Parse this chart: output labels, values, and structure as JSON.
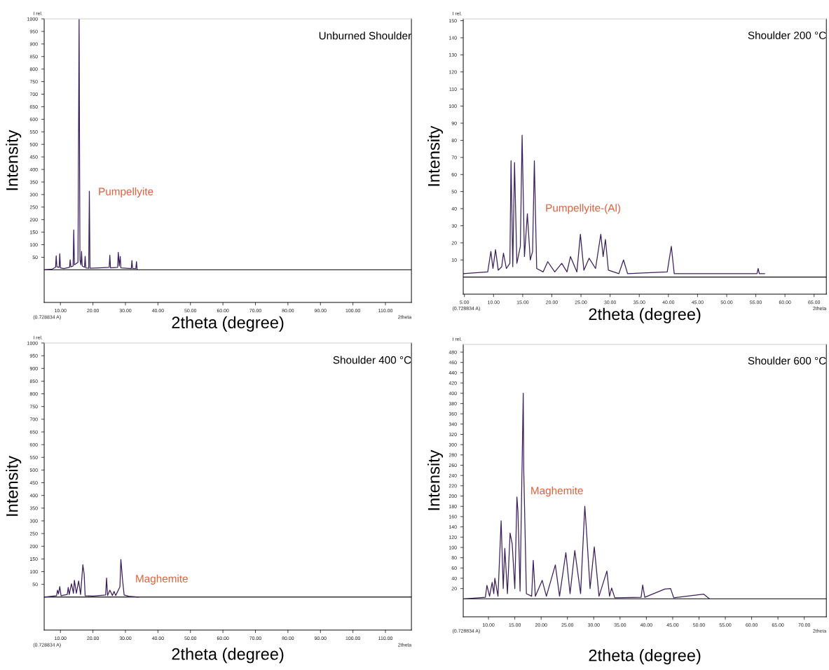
{
  "chart_data": [
    {
      "type": "line",
      "title": "Unburned Shoulder",
      "xlabel": "2theta (degree)",
      "ylabel": "Intensity",
      "xlim": [
        5,
        118
      ],
      "ylim": [
        -130,
        1000
      ],
      "xticks": [
        {
          "value": 10,
          "label": "10.00"
        },
        {
          "value": 20,
          "label": "20.00"
        },
        {
          "value": 30,
          "label": "30.00"
        },
        {
          "value": 40,
          "label": "40.00"
        },
        {
          "value": 50,
          "label": "50.00"
        },
        {
          "value": 60,
          "label": "60.00"
        },
        {
          "value": 70,
          "label": "70.00"
        },
        {
          "value": 80,
          "label": "80.00"
        },
        {
          "value": 90,
          "label": "90.00"
        },
        {
          "value": 100,
          "label": "100.00"
        },
        {
          "value": 110,
          "label": "110.00"
        }
      ],
      "yticks": [
        50,
        100,
        150,
        200,
        250,
        300,
        350,
        400,
        450,
        500,
        550,
        600,
        650,
        700,
        750,
        800,
        850,
        900,
        950,
        1000
      ],
      "series": [
        {
          "color": "#3b1f5c",
          "x": [
            5,
            7.5,
            8.5,
            8.7,
            8.9,
            9.6,
            9.8,
            10.0,
            11.0,
            12.8,
            13.0,
            13.2,
            13.9,
            14.1,
            14.3,
            15.4,
            15.74,
            16.0,
            16.3,
            16.5,
            16.7,
            17.4,
            17.6,
            17.8,
            18.7,
            18.9,
            19.1,
            22,
            25.0,
            25.2,
            25.4,
            27.6,
            27.8,
            28.1,
            28.4,
            28.6,
            31.8,
            32.0,
            32.2,
            33.2,
            33.4,
            33.6
          ],
          "values": [
            0,
            3,
            10,
            56,
            12,
            10,
            64,
            8,
            5,
            10,
            40,
            12,
            15,
            159,
            20,
            30,
            1000,
            40,
            20,
            73,
            15,
            10,
            54,
            8,
            6,
            313,
            6,
            8,
            10,
            58,
            8,
            10,
            70,
            15,
            53,
            8,
            5,
            37,
            5,
            5,
            33,
            0
          ]
        }
      ],
      "ref_lines": [
        {
          "axis": "y",
          "value": 0,
          "color": "#333333"
        }
      ],
      "annotations": [
        "Pumpellyite",
        "I rel.",
        "(0.728834 A)",
        "2theta"
      ]
    },
    {
      "type": "line",
      "title": "Shoulder 200 °C",
      "xlabel": "2theta (degree)",
      "ylabel": "Intensity",
      "xlim": [
        4.8,
        67.1
      ],
      "ylim": [
        -10,
        151
      ],
      "xticks": [
        {
          "value": 5,
          "label": "5.00"
        },
        {
          "value": 10,
          "label": "10.00"
        },
        {
          "value": 15,
          "label": "15.00"
        },
        {
          "value": 20,
          "label": "20.00"
        },
        {
          "value": 25,
          "label": "25.00"
        },
        {
          "value": 30,
          "label": "30.00"
        },
        {
          "value": 35,
          "label": "35.00"
        },
        {
          "value": 40,
          "label": "40.00"
        },
        {
          "value": 45,
          "label": "45.00"
        },
        {
          "value": 50,
          "label": "50.00"
        },
        {
          "value": 55,
          "label": "55.00"
        },
        {
          "value": 60,
          "label": "60.00"
        },
        {
          "value": 65,
          "label": "65.00"
        }
      ],
      "yticks": [
        10,
        20,
        30,
        40,
        50,
        60,
        70,
        80,
        90,
        100,
        110,
        120,
        130,
        140,
        150
      ],
      "series": [
        {
          "color": "#3b1f5c",
          "x": [
            4.8,
            9.0,
            9.54,
            9.9,
            10.34,
            10.8,
            11.4,
            11.7,
            12.2,
            12.8,
            13.0,
            13.3,
            13.6,
            14.0,
            14.6,
            14.9,
            15.3,
            15.8,
            16.3,
            16.7,
            17.0,
            17.4,
            18.5,
            19.3,
            20.5,
            21.7,
            22.6,
            23.2,
            24.3,
            24.9,
            25.5,
            26.4,
            27.5,
            28.4,
            28.8,
            29.2,
            29.7,
            31.5,
            32.3,
            33,
            39.8,
            40.5,
            41,
            55.2,
            55.4,
            55.6,
            56.5
          ],
          "values": [
            2,
            3,
            15,
            5,
            16,
            4,
            6,
            14,
            5,
            8,
            68,
            6,
            67,
            8,
            18,
            83,
            12,
            37,
            10,
            15,
            68,
            5,
            3,
            9,
            3,
            8,
            3,
            12,
            3,
            25,
            4,
            11,
            5,
            25,
            12,
            22,
            4,
            2,
            10,
            2,
            3,
            18,
            2,
            2,
            5,
            2,
            2
          ]
        }
      ],
      "ref_lines": [
        {
          "axis": "y",
          "value": 0,
          "color": "#333333"
        }
      ],
      "annotations": [
        "Pumpellyite-(Al)",
        "I rel.",
        "(0.728834 A)",
        "2theta"
      ]
    },
    {
      "type": "line",
      "title": "Shoulder 400 °C",
      "xlabel": "2theta (degree)",
      "ylabel": "Intensity",
      "xlim": [
        5,
        118
      ],
      "ylim": [
        -130,
        1000
      ],
      "xticks": [
        {
          "value": 10,
          "label": "10.00"
        },
        {
          "value": 20,
          "label": "20.00"
        },
        {
          "value": 30,
          "label": "30.00"
        },
        {
          "value": 40,
          "label": "40.00"
        },
        {
          "value": 50,
          "label": "50.00"
        },
        {
          "value": 60,
          "label": "60.00"
        },
        {
          "value": 70,
          "label": "70.00"
        },
        {
          "value": 80,
          "label": "80.00"
        },
        {
          "value": 90,
          "label": "90.00"
        },
        {
          "value": 100,
          "label": "100.00"
        },
        {
          "value": 110,
          "label": "110.00"
        }
      ],
      "yticks": [
        50,
        100,
        150,
        200,
        250,
        300,
        350,
        400,
        450,
        500,
        550,
        600,
        650,
        700,
        750,
        800,
        850,
        900,
        950,
        1000
      ],
      "series": [
        {
          "color": "#3b1f5c",
          "x": [
            5,
            8.8,
            9.1,
            9.4,
            9.8,
            10.2,
            12.1,
            12.4,
            12.7,
            13.4,
            14.0,
            14.3,
            14.9,
            15.6,
            16.2,
            16.9,
            17.3,
            17.6,
            20,
            23.9,
            24.2,
            24.5,
            25.2,
            26.0,
            26.5,
            27,
            28.3,
            28.6,
            29.1,
            29.6,
            31,
            34
          ],
          "values": [
            0,
            5,
            27,
            12,
            41,
            5,
            10,
            38,
            10,
            52,
            15,
            66,
            15,
            63,
            10,
            127,
            90,
            5,
            4,
            8,
            75,
            6,
            27,
            6,
            22,
            6,
            40,
            148,
            69,
            8,
            3,
            0
          ]
        }
      ],
      "ref_lines": [
        {
          "axis": "y",
          "value": 0,
          "color": "#333333"
        }
      ],
      "annotations": [
        "Maghemite",
        "I rel.",
        "(0.728834 A)",
        "2theta"
      ]
    },
    {
      "type": "line",
      "title": "Shoulder 600 °C",
      "xlabel": "2theta (degree)",
      "ylabel": "Intensity",
      "xlim": [
        5.2,
        74.2
      ],
      "ylim": [
        -35,
        495
      ],
      "xticks": [
        {
          "value": 10,
          "label": "10.00"
        },
        {
          "value": 15,
          "label": "15.00"
        },
        {
          "value": 20,
          "label": "20.00"
        },
        {
          "value": 25,
          "label": "25.00"
        },
        {
          "value": 30,
          "label": "30.00"
        },
        {
          "value": 35,
          "label": "35.00"
        },
        {
          "value": 40,
          "label": "40.00"
        },
        {
          "value": 45,
          "label": "45.00"
        },
        {
          "value": 50,
          "label": "50.00"
        },
        {
          "value": 55,
          "label": "55.00"
        },
        {
          "value": 60,
          "label": "60.00"
        },
        {
          "value": 65,
          "label": "65.00"
        },
        {
          "value": 70,
          "label": "70.00"
        }
      ],
      "yticks": [
        20,
        40,
        60,
        80,
        100,
        120,
        140,
        160,
        180,
        200,
        220,
        240,
        260,
        280,
        300,
        320,
        340,
        360,
        380,
        400,
        420,
        440,
        460,
        480
      ],
      "series": [
        {
          "color": "#3b1f5c",
          "x": [
            5.5,
            9.4,
            9.7,
            10.2,
            10.7,
            11.0,
            11.2,
            11.8,
            12.4,
            12.8,
            13.1,
            13.6,
            14.1,
            14.5,
            15.0,
            15.4,
            15.6,
            16.0,
            16.6,
            16.7,
            17.2,
            18.2,
            18.5,
            18.9,
            20.2,
            21,
            22.7,
            23.5,
            24.7,
            25.5,
            26.4,
            27.5,
            28.3,
            28.6,
            29.3,
            30.1,
            31,
            32.5,
            33.0,
            33.4,
            34,
            39.0,
            39.3,
            39.7,
            43.5,
            44.6,
            45.2,
            50.9,
            52
          ],
          "values": [
            0,
            3,
            26,
            5,
            32,
            10,
            40,
            5,
            152,
            20,
            98,
            10,
            128,
            107,
            20,
            198,
            169,
            15,
            400,
            250,
            10,
            5,
            75,
            5,
            36,
            5,
            66,
            5,
            90,
            10,
            94,
            10,
            180,
            136,
            20,
            101,
            5,
            54,
            5,
            21,
            2,
            3,
            27,
            3,
            19,
            20,
            2,
            9,
            0
          ]
        }
      ],
      "ref_lines": [
        {
          "axis": "y",
          "value": 0,
          "color": "#333333"
        }
      ],
      "annotations": [
        "Maghemite",
        "I rel.",
        "(0.728834 A)",
        "2theta"
      ]
    }
  ]
}
